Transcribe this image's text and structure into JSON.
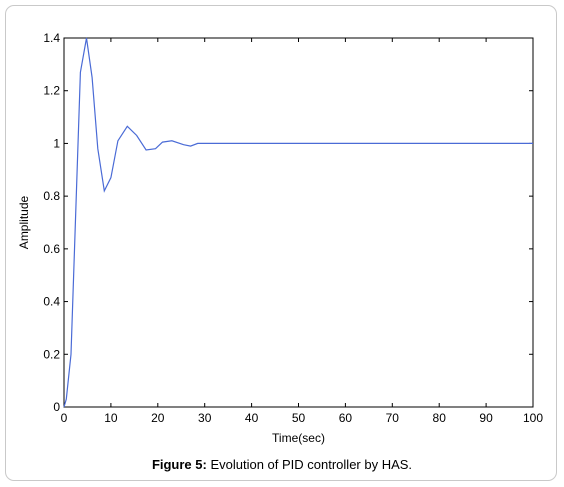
{
  "caption": {
    "label": "Figure 5:",
    "text": " Evolution of PID controller by HAS."
  },
  "chart_data": {
    "type": "line",
    "title": "",
    "xlabel": "Time(sec)",
    "ylabel": "Amplitude",
    "xlim": [
      0,
      100
    ],
    "ylim": [
      0,
      1.4
    ],
    "xticks": [
      0,
      10,
      20,
      30,
      40,
      50,
      60,
      70,
      80,
      90,
      100
    ],
    "yticks": [
      0,
      0.2,
      0.4,
      0.6,
      0.8,
      1,
      1.2,
      1.4
    ],
    "grid": false,
    "line_color": "#4a6bd6",
    "series": [
      {
        "x": [
          0,
          0.5,
          1.5,
          3.5,
          4.8,
          6,
          7.2,
          8.6,
          10,
          11.5,
          13.5,
          15.5,
          17.5,
          19.5,
          21,
          23,
          25.5,
          27,
          28.5,
          30,
          40,
          50,
          60,
          70,
          80,
          90,
          100
        ],
        "y": [
          0,
          0.03,
          0.2,
          1.27,
          1.4,
          1.25,
          0.98,
          0.82,
          0.87,
          1.01,
          1.065,
          1.03,
          0.975,
          0.98,
          1.005,
          1.01,
          0.995,
          0.99,
          1.0,
          1.0,
          1.0,
          1.0,
          1.0,
          1.0,
          1.0,
          1.0,
          1.0
        ]
      }
    ]
  }
}
